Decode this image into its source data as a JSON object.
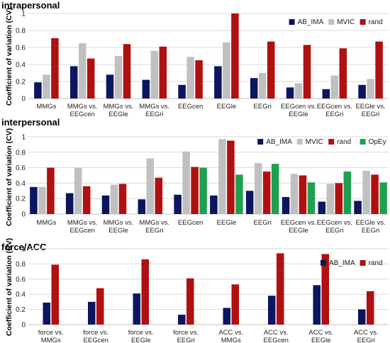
{
  "colors": {
    "AB_IMA": "#0b1560",
    "MVIC": "#c0c0c0",
    "rand": "#b01010",
    "OpEy": "#1fa050"
  },
  "chart_data": [
    {
      "type": "bar",
      "title": "intrapersonal",
      "ylabel": "Coefficient of variation (CV)",
      "ylim": [
        0,
        1
      ],
      "yticks": [
        "0",
        "0.2",
        "0.4",
        "0.6",
        "0.8",
        "1"
      ],
      "legend_position": "top-right",
      "grid": true,
      "categories": [
        [
          "MMGs"
        ],
        [
          "MMGs vs.",
          "EEGcen"
        ],
        [
          "MMGs vs.",
          "EEGle"
        ],
        [
          "MMGs vs.",
          "EEGri"
        ],
        [
          "EEGcen"
        ],
        [
          "EEGle"
        ],
        [
          "EEGri"
        ],
        [
          "EEGcen vs.",
          "EEGle"
        ],
        [
          "EEGcen vs.",
          "EEGri"
        ],
        [
          "EEGle vs.",
          "EEGri"
        ]
      ],
      "series": [
        {
          "name": "AB_IMA",
          "values": [
            0.19,
            0.38,
            0.28,
            0.22,
            0.16,
            0.38,
            0.24,
            0.13,
            0.11,
            0.16
          ]
        },
        {
          "name": "MVIC",
          "values": [
            0.28,
            0.65,
            0.5,
            0.56,
            0.49,
            0.66,
            0.3,
            0.18,
            0.27,
            0.23
          ]
        },
        {
          "name": "rand",
          "values": [
            0.71,
            0.47,
            0.64,
            0.61,
            0.45,
            1.0,
            0.67,
            0.63,
            0.59,
            0.67
          ]
        }
      ]
    },
    {
      "type": "bar",
      "title": "interpersonal",
      "ylabel": "Coefficient of variation (CV)",
      "ylim": [
        0,
        1
      ],
      "yticks": [
        "0",
        "0.2",
        "0.4",
        "0.6",
        "0.8",
        "1"
      ],
      "legend_position": "top-right",
      "grid": true,
      "categories": [
        [
          "MMGs"
        ],
        [
          "MMGs vs.",
          "EEGcen"
        ],
        [
          "MMGs vs.",
          "EEGle"
        ],
        [
          "MMGs vs.",
          "EEGri"
        ],
        [
          "EEGcen"
        ],
        [
          "EEGle"
        ],
        [
          "EEGri"
        ],
        [
          "EEGcen vs.",
          "EEGle"
        ],
        [
          "EEGcen vs.",
          "EEGri"
        ],
        [
          "EEGle vs.",
          "EEGri"
        ]
      ],
      "series": [
        {
          "name": "AB_IMA",
          "values": [
            0.35,
            0.27,
            0.24,
            0.19,
            0.25,
            0.24,
            0.3,
            0.22,
            0.16,
            0.17
          ]
        },
        {
          "name": "MVIC",
          "values": [
            0.35,
            0.6,
            0.38,
            0.72,
            0.81,
            0.97,
            0.66,
            0.52,
            0.39,
            0.56
          ]
        },
        {
          "name": "rand",
          "values": [
            0.6,
            0.36,
            0.39,
            0.47,
            0.61,
            0.95,
            0.55,
            0.5,
            0.4,
            0.51
          ]
        },
        {
          "name": "OpEy",
          "values": [
            null,
            null,
            null,
            null,
            0.6,
            0.51,
            0.65,
            0.41,
            0.55,
            0.41
          ]
        }
      ]
    },
    {
      "type": "bar",
      "title": "force/ACC",
      "ylabel": "Coefficient of variation (CV)",
      "ylim": [
        0,
        1
      ],
      "yticks": [
        "0",
        "0.2",
        "0.4",
        "0.6",
        "0.8",
        "1"
      ],
      "legend_position": "top-right",
      "grid": true,
      "categories": [
        [
          "force vs.",
          "MMGs"
        ],
        [
          "force vs.",
          "EEGcen"
        ],
        [
          "force vs.",
          "EEGle"
        ],
        [
          "force vs.",
          "EEGri"
        ],
        [
          "ACC vs.",
          "MMGs"
        ],
        [
          "ACC vs.",
          "EEGcen"
        ],
        [
          "ACC vs.",
          "EEGle"
        ],
        [
          "ACC vs.",
          "EEGri"
        ]
      ],
      "series": [
        {
          "name": "AB_IMA",
          "values": [
            0.29,
            0.3,
            0.41,
            0.13,
            0.22,
            0.38,
            0.52,
            0.2
          ]
        },
        {
          "name": "rand",
          "values": [
            0.79,
            0.48,
            0.86,
            0.61,
            0.53,
            0.94,
            0.93,
            0.44
          ]
        }
      ]
    }
  ]
}
